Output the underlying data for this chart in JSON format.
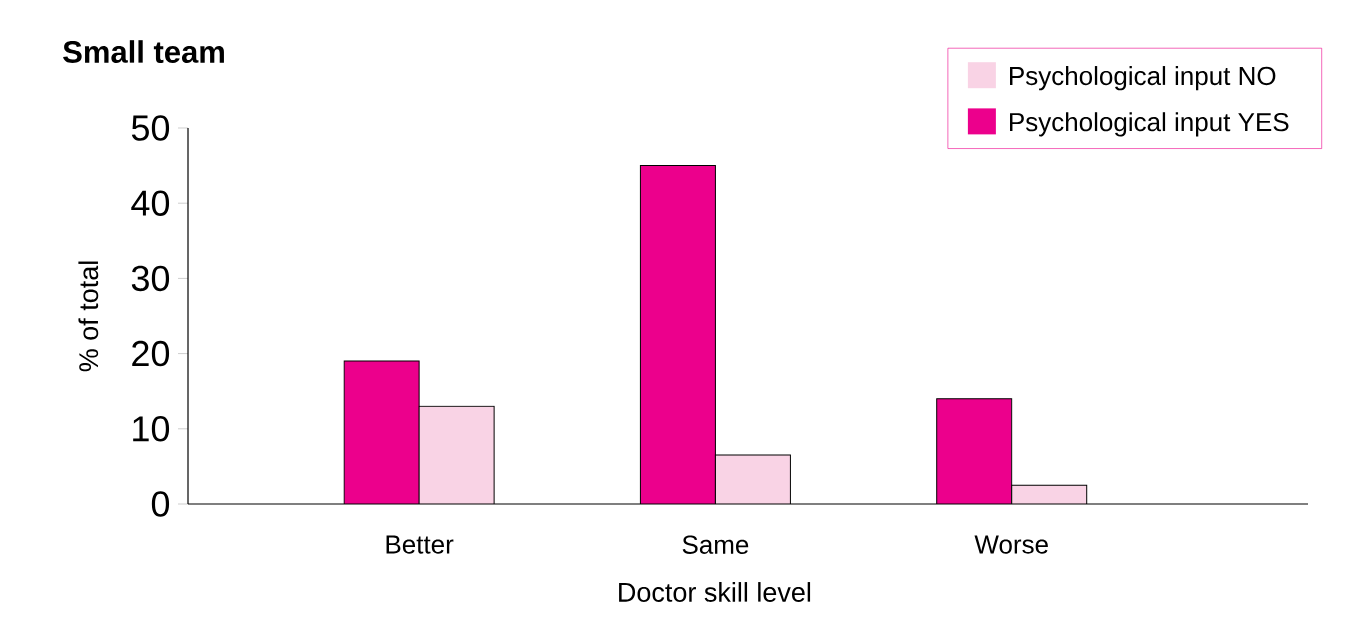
{
  "chart_data": {
    "type": "bar",
    "title": "Small team",
    "xlabel": "Doctor skill level",
    "ylabel": "% of total",
    "categories": [
      "Better",
      "Same",
      "Worse"
    ],
    "series": [
      {
        "name": "Psychological input YES",
        "color": "#ec008c",
        "values": [
          19,
          45,
          14
        ]
      },
      {
        "name": "Psychological input NO",
        "color": "#f9d3e5",
        "values": [
          13,
          6.5,
          2.5
        ]
      }
    ],
    "ylim": [
      0,
      50
    ],
    "yticks": [
      0,
      10,
      20,
      30,
      40,
      50
    ],
    "legend": "top right"
  }
}
